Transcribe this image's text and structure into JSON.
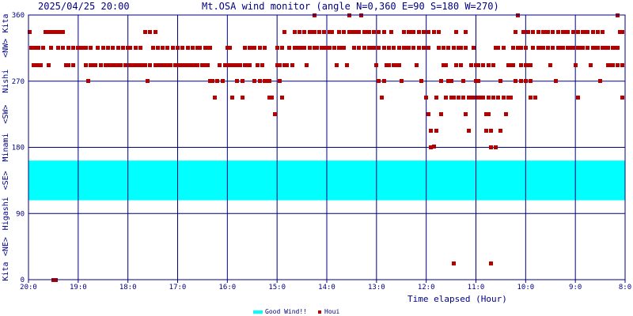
{
  "header": {
    "timestamp": "2025/04/25 20:00",
    "title": "Mt.OSA wind monitor (angle N=0,360 E=90 S=180 W=270)"
  },
  "colors": {
    "axis": "#000080",
    "good_wind_band": "#00ffff",
    "houi_points": "#b20000",
    "background": "#ffffff"
  },
  "chart_data": {
    "type": "scatter",
    "title": "Mt.OSA wind monitor (angle N=0,360 E=90 S=180 W=270)",
    "xlabel": "Time elapsed (Hour)",
    "x_ticks": [
      "20:0",
      "19:0",
      "18:0",
      "17:0",
      "16:0",
      "15:0",
      "14:0",
      "13:0",
      "12:0",
      "11:0",
      "10:0",
      "9:0",
      "8:0"
    ],
    "x_range": [
      0,
      12
    ],
    "ylim": [
      0,
      360
    ],
    "y_ticks": [
      0,
      90,
      180,
      270,
      360
    ],
    "y_side_labels": [
      {
        "text": "Kita",
        "from": 0,
        "to": 22.5
      },
      {
        "text": "<NE>",
        "from": 22.5,
        "to": 67.5
      },
      {
        "text": "Higashi",
        "from": 67.5,
        "to": 112.5
      },
      {
        "text": "<SE>",
        "from": 112.5,
        "to": 157.5
      },
      {
        "text": "Minami",
        "from": 157.5,
        "to": 202.5
      },
      {
        "text": "<SW>",
        "from": 202.5,
        "to": 247.5
      },
      {
        "text": "Nishi",
        "from": 247.5,
        "to": 292.5
      },
      {
        "text": "<NW>",
        "from": 292.5,
        "to": 337.5
      },
      {
        "text": "Kita",
        "from": 337.5,
        "to": 360
      }
    ],
    "good_wind_band": {
      "from": 108,
      "to": 162
    },
    "legend": [
      {
        "label": "Good Wind!!",
        "kind": "band"
      },
      {
        "label": "Houi",
        "kind": "point"
      }
    ],
    "grid": true,
    "points_source": "houi",
    "houi": [
      [
        0.02,
        337
      ],
      [
        0.05,
        315
      ],
      [
        0.1,
        292
      ],
      [
        0.12,
        315
      ],
      [
        0.18,
        292
      ],
      [
        0.2,
        315
      ],
      [
        0.25,
        292
      ],
      [
        0.3,
        315
      ],
      [
        0.35,
        337
      ],
      [
        0.4,
        292
      ],
      [
        0.45,
        315
      ],
      [
        0.5,
        337
      ],
      [
        0.55,
        337
      ],
      [
        0.6,
        337
      ],
      [
        0.65,
        337
      ],
      [
        0.7,
        337
      ],
      [
        0.75,
        292
      ],
      [
        0.8,
        292
      ],
      [
        0.9,
        315
      ],
      [
        1.0,
        315
      ],
      [
        1.1,
        315
      ],
      [
        1.2,
        270
      ],
      [
        1.3,
        292
      ],
      [
        1.4,
        315
      ],
      [
        1.5,
        315
      ],
      [
        1.6,
        315
      ],
      [
        1.7,
        292
      ],
      [
        1.8,
        292
      ],
      [
        1.9,
        315
      ],
      [
        2.0,
        315
      ],
      [
        2.1,
        292
      ],
      [
        2.2,
        292
      ],
      [
        2.3,
        292
      ],
      [
        2.4,
        270
      ],
      [
        2.5,
        315
      ],
      [
        2.55,
        337
      ],
      [
        2.6,
        292
      ],
      [
        2.7,
        292
      ],
      [
        2.8,
        292
      ],
      [
        2.9,
        315
      ],
      [
        3.0,
        315
      ],
      [
        3.1,
        292
      ],
      [
        3.2,
        292
      ],
      [
        3.3,
        292
      ],
      [
        3.4,
        292
      ],
      [
        3.5,
        292
      ],
      [
        3.6,
        292
      ],
      [
        3.7,
        270
      ],
      [
        3.75,
        248
      ],
      [
        3.8,
        270
      ],
      [
        3.9,
        270
      ],
      [
        4.0,
        315
      ],
      [
        4.05,
        292
      ],
      [
        4.1,
        248
      ],
      [
        4.2,
        270
      ],
      [
        4.3,
        248
      ],
      [
        4.4,
        292
      ],
      [
        4.5,
        315
      ],
      [
        4.6,
        292
      ],
      [
        4.7,
        292
      ],
      [
        4.8,
        270
      ],
      [
        4.85,
        248
      ],
      [
        4.9,
        248
      ],
      [
        4.95,
        225
      ],
      [
        5.0,
        292
      ],
      [
        5.05,
        270
      ],
      [
        5.1,
        248
      ],
      [
        5.2,
        292
      ],
      [
        5.3,
        292
      ],
      [
        5.4,
        315
      ],
      [
        5.5,
        315
      ],
      [
        5.6,
        292
      ],
      [
        5.7,
        337
      ],
      [
        5.75,
        360
      ],
      [
        5.8,
        315
      ],
      [
        5.9,
        315
      ],
      [
        6.0,
        315
      ],
      [
        6.1,
        337
      ],
      [
        6.2,
        292
      ],
      [
        6.3,
        315
      ],
      [
        6.4,
        292
      ],
      [
        6.45,
        360
      ],
      [
        6.5,
        337
      ],
      [
        6.6,
        337
      ],
      [
        6.7,
        360
      ],
      [
        6.8,
        337
      ],
      [
        6.9,
        315
      ],
      [
        7.0,
        292
      ],
      [
        7.05,
        270
      ],
      [
        7.1,
        248
      ],
      [
        7.15,
        270
      ],
      [
        7.2,
        292
      ],
      [
        7.3,
        337
      ],
      [
        7.4,
        292
      ],
      [
        7.5,
        270
      ],
      [
        7.6,
        315
      ],
      [
        7.7,
        337
      ],
      [
        7.8,
        292
      ],
      [
        7.9,
        270
      ],
      [
        8.0,
        248
      ],
      [
        8.05,
        225
      ],
      [
        8.1,
        203
      ],
      [
        8.15,
        181
      ],
      [
        8.2,
        248
      ],
      [
        8.3,
        270
      ],
      [
        8.4,
        292
      ],
      [
        8.5,
        248
      ],
      [
        8.6,
        337
      ],
      [
        8.7,
        292
      ],
      [
        8.75,
        270
      ],
      [
        8.8,
        225
      ],
      [
        8.85,
        203
      ],
      [
        8.9,
        248
      ],
      [
        9.0,
        292
      ],
      [
        9.05,
        270
      ],
      [
        9.1,
        248
      ],
      [
        9.2,
        203
      ],
      [
        9.25,
        225
      ],
      [
        9.3,
        180
      ],
      [
        9.35,
        292
      ],
      [
        9.4,
        315
      ],
      [
        9.5,
        270
      ],
      [
        9.55,
        248
      ],
      [
        9.6,
        225
      ],
      [
        9.7,
        292
      ],
      [
        9.8,
        337
      ],
      [
        9.85,
        360
      ],
      [
        9.9,
        270
      ],
      [
        10.0,
        315
      ],
      [
        10.05,
        292
      ],
      [
        10.1,
        270
      ],
      [
        10.2,
        248
      ],
      [
        10.3,
        315
      ],
      [
        10.4,
        337
      ],
      [
        10.5,
        292
      ],
      [
        10.6,
        270
      ],
      [
        10.7,
        315
      ],
      [
        10.8,
        337
      ],
      [
        10.9,
        315
      ],
      [
        11.0,
        292
      ],
      [
        11.05,
        248
      ],
      [
        11.1,
        315
      ],
      [
        11.2,
        337
      ],
      [
        11.3,
        292
      ],
      [
        11.4,
        315
      ],
      [
        11.5,
        270
      ],
      [
        11.55,
        337
      ],
      [
        11.6,
        315
      ],
      [
        11.7,
        292
      ],
      [
        11.8,
        315
      ],
      [
        11.85,
        360
      ],
      [
        11.9,
        337
      ],
      [
        11.95,
        248
      ],
      [
        0.5,
        0
      ],
      [
        0.55,
        0
      ],
      [
        1.15,
        292
      ],
      [
        1.25,
        292
      ],
      [
        1.35,
        292
      ],
      [
        1.6,
        292
      ],
      [
        1.7,
        315
      ],
      [
        1.8,
        315
      ],
      [
        1.9,
        315
      ],
      [
        2.0,
        315
      ],
      [
        2.05,
        292
      ],
      [
        2.15,
        315
      ],
      [
        2.25,
        315
      ],
      [
        2.35,
        337
      ],
      [
        2.45,
        337
      ],
      [
        2.6,
        315
      ],
      [
        2.7,
        315
      ],
      [
        2.8,
        315
      ],
      [
        3.0,
        292
      ],
      [
        3.1,
        315
      ],
      [
        3.2,
        315
      ],
      [
        3.3,
        315
      ],
      [
        3.4,
        315
      ],
      [
        3.5,
        292
      ],
      [
        3.55,
        315
      ],
      [
        3.6,
        315
      ],
      [
        3.65,
        315
      ],
      [
        4.0,
        292
      ],
      [
        4.1,
        292
      ],
      [
        4.2,
        292
      ],
      [
        4.3,
        270
      ],
      [
        4.35,
        315
      ],
      [
        4.45,
        315
      ],
      [
        4.55,
        315
      ],
      [
        4.65,
        315
      ],
      [
        4.75,
        315
      ],
      [
        5.0,
        315
      ],
      [
        5.1,
        315
      ],
      [
        5.15,
        337
      ],
      [
        5.25,
        315
      ],
      [
        5.35,
        315
      ],
      [
        5.45,
        315
      ],
      [
        5.55,
        315
      ],
      [
        5.65,
        315
      ],
      [
        5.75,
        315
      ],
      [
        5.85,
        337
      ],
      [
        5.95,
        337
      ],
      [
        6.05,
        337
      ],
      [
        6.15,
        315
      ],
      [
        6.25,
        315
      ],
      [
        6.35,
        315
      ],
      [
        6.55,
        315
      ],
      [
        6.65,
        315
      ],
      [
        6.75,
        315
      ],
      [
        6.85,
        315
      ],
      [
        6.95,
        337
      ],
      [
        7.05,
        337
      ],
      [
        7.15,
        337
      ],
      [
        7.25,
        315
      ],
      [
        7.35,
        315
      ],
      [
        7.45,
        292
      ],
      [
        7.55,
        315
      ],
      [
        7.65,
        315
      ],
      [
        7.75,
        315
      ],
      [
        7.85,
        315
      ],
      [
        7.95,
        315
      ],
      [
        8.05,
        315
      ],
      [
        8.25,
        337
      ],
      [
        8.35,
        315
      ],
      [
        8.45,
        315
      ],
      [
        8.55,
        315
      ],
      [
        8.65,
        315
      ],
      [
        8.7,
        315
      ],
      [
        8.8,
        315
      ],
      [
        8.95,
        315
      ],
      [
        9.05,
        292
      ],
      [
        9.15,
        292
      ],
      [
        9.25,
        292
      ],
      [
        9.45,
        315
      ],
      [
        9.55,
        315
      ],
      [
        9.65,
        292
      ],
      [
        9.75,
        315
      ],
      [
        9.9,
        315
      ],
      [
        10.0,
        292
      ],
      [
        10.1,
        292
      ],
      [
        10.15,
        315
      ],
      [
        10.25,
        315
      ],
      [
        10.35,
        315
      ],
      [
        10.45,
        315
      ],
      [
        10.55,
        315
      ],
      [
        10.65,
        315
      ],
      [
        10.75,
        315
      ],
      [
        10.85,
        315
      ],
      [
        10.95,
        315
      ],
      [
        11.05,
        315
      ],
      [
        11.15,
        315
      ],
      [
        11.25,
        315
      ],
      [
        11.35,
        315
      ],
      [
        11.45,
        315
      ],
      [
        11.55,
        315
      ],
      [
        11.65,
        315
      ],
      [
        11.75,
        315
      ],
      [
        11.85,
        315
      ],
      [
        11.95,
        337
      ],
      [
        0.15,
        292
      ],
      [
        0.22,
        292
      ],
      [
        0.4,
        337
      ],
      [
        0.45,
        337
      ],
      [
        0.6,
        315
      ],
      [
        0.7,
        315
      ],
      [
        0.8,
        315
      ],
      [
        0.9,
        292
      ],
      [
        1.05,
        315
      ],
      [
        1.15,
        315
      ],
      [
        1.25,
        315
      ],
      [
        1.45,
        292
      ],
      [
        1.55,
        292
      ],
      [
        1.65,
        292
      ],
      [
        1.75,
        292
      ],
      [
        1.85,
        292
      ],
      [
        1.95,
        292
      ],
      [
        2.05,
        315
      ],
      [
        2.15,
        292
      ],
      [
        2.25,
        292
      ],
      [
        2.35,
        292
      ],
      [
        2.45,
        292
      ],
      [
        2.55,
        292
      ],
      [
        2.65,
        292
      ],
      [
        2.75,
        292
      ],
      [
        2.85,
        292
      ],
      [
        2.95,
        292
      ],
      [
        3.05,
        292
      ],
      [
        3.15,
        292
      ],
      [
        3.25,
        292
      ],
      [
        3.35,
        292
      ],
      [
        3.45,
        315
      ],
      [
        3.55,
        292
      ],
      [
        3.65,
        270
      ],
      [
        3.7,
        270
      ],
      [
        3.85,
        292
      ],
      [
        3.95,
        292
      ],
      [
        4.05,
        315
      ],
      [
        4.15,
        292
      ],
      [
        4.25,
        292
      ],
      [
        4.35,
        292
      ],
      [
        4.45,
        292
      ],
      [
        4.55,
        270
      ],
      [
        4.65,
        270
      ],
      [
        4.75,
        270
      ],
      [
        4.85,
        270
      ],
      [
        5.05,
        292
      ],
      [
        5.15,
        292
      ],
      [
        5.25,
        315
      ],
      [
        5.35,
        337
      ],
      [
        5.45,
        337
      ],
      [
        5.55,
        337
      ],
      [
        5.65,
        337
      ],
      [
        5.75,
        337
      ],
      [
        5.85,
        337
      ],
      [
        5.95,
        315
      ],
      [
        6.05,
        315
      ],
      [
        6.15,
        315
      ],
      [
        6.25,
        337
      ],
      [
        6.35,
        337
      ],
      [
        6.45,
        337
      ],
      [
        6.55,
        337
      ],
      [
        6.65,
        337
      ],
      [
        6.75,
        337
      ],
      [
        6.85,
        337
      ],
      [
        6.95,
        315
      ],
      [
        7.05,
        315
      ],
      [
        7.15,
        315
      ],
      [
        7.25,
        292
      ],
      [
        7.35,
        292
      ],
      [
        7.45,
        315
      ],
      [
        7.55,
        337
      ],
      [
        7.65,
        337
      ],
      [
        7.75,
        337
      ],
      [
        7.85,
        337
      ],
      [
        7.95,
        337
      ],
      [
        8.05,
        337
      ],
      [
        8.15,
        337
      ],
      [
        8.25,
        315
      ],
      [
        8.35,
        292
      ],
      [
        8.45,
        270
      ],
      [
        8.55,
        248
      ],
      [
        8.65,
        248
      ],
      [
        8.75,
        248
      ],
      [
        8.85,
        248
      ],
      [
        8.95,
        248
      ],
      [
        9.05,
        248
      ],
      [
        9.15,
        248
      ],
      [
        9.25,
        248
      ],
      [
        9.35,
        248
      ],
      [
        9.45,
        248
      ],
      [
        9.55,
        248
      ],
      [
        9.65,
        248
      ],
      [
        9.75,
        292
      ],
      [
        9.85,
        315
      ],
      [
        9.95,
        337
      ],
      [
        10.05,
        337
      ],
      [
        10.15,
        337
      ],
      [
        10.25,
        337
      ],
      [
        10.35,
        337
      ],
      [
        10.45,
        337
      ],
      [
        10.55,
        337
      ],
      [
        10.65,
        337
      ],
      [
        10.75,
        337
      ],
      [
        10.85,
        337
      ],
      [
        10.95,
        337
      ],
      [
        11.05,
        337
      ],
      [
        11.15,
        337
      ],
      [
        11.25,
        337
      ],
      [
        11.35,
        337
      ],
      [
        11.45,
        337
      ],
      [
        11.55,
        337
      ],
      [
        11.65,
        292
      ],
      [
        11.75,
        292
      ],
      [
        11.85,
        292
      ],
      [
        11.95,
        292
      ],
      [
        8.1,
        180
      ],
      [
        8.2,
        203
      ],
      [
        8.3,
        225
      ],
      [
        8.4,
        248
      ],
      [
        8.5,
        270
      ],
      [
        8.6,
        292
      ],
      [
        8.7,
        315
      ],
      [
        8.8,
        337
      ],
      [
        8.9,
        292
      ],
      [
        9.0,
        270
      ],
      [
        9.1,
        248
      ],
      [
        9.2,
        225
      ],
      [
        9.3,
        203
      ],
      [
        9.4,
        180
      ],
      [
        9.5,
        203
      ],
      [
        9.6,
        225
      ],
      [
        9.7,
        248
      ],
      [
        9.8,
        270
      ],
      [
        9.9,
        292
      ],
      [
        10.0,
        270
      ],
      [
        10.1,
        248
      ],
      [
        8.55,
        22
      ],
      [
        9.3,
        22
      ]
    ]
  }
}
